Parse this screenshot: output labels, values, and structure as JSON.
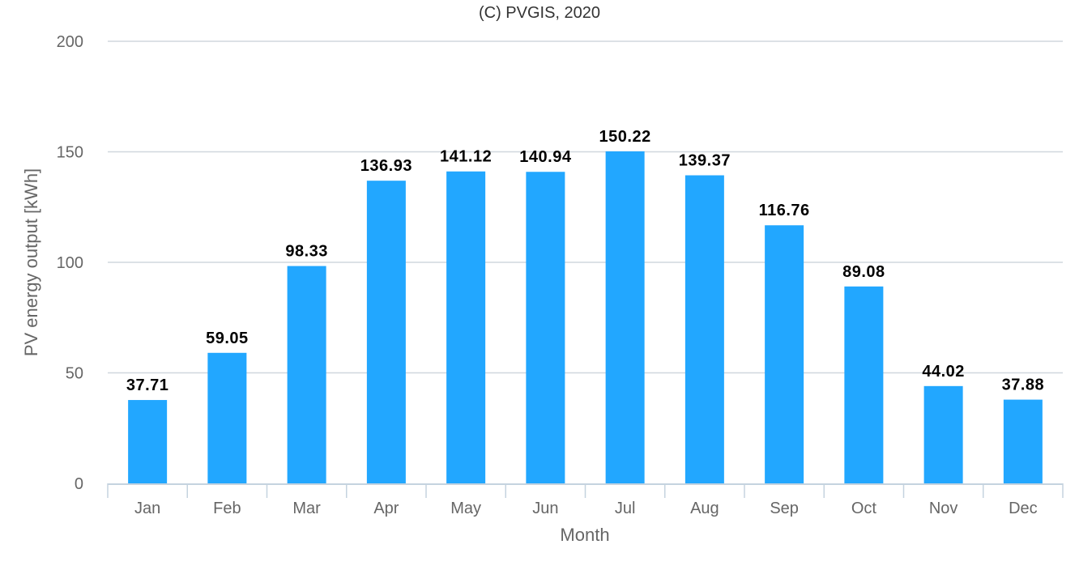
{
  "credit": "(C) PVGIS, 2020",
  "chart_data": {
    "type": "bar",
    "title": "",
    "xlabel": "Month",
    "ylabel": "PV energy output [kWh]",
    "categories": [
      "Jan",
      "Feb",
      "Mar",
      "Apr",
      "May",
      "Jun",
      "Jul",
      "Aug",
      "Sep",
      "Oct",
      "Nov",
      "Dec"
    ],
    "values": [
      37.71,
      59.05,
      98.33,
      136.93,
      141.12,
      140.94,
      150.22,
      139.37,
      116.76,
      89.08,
      44.02,
      37.88
    ],
    "value_labels": [
      "37.71",
      "59.05",
      "98.33",
      "136.93",
      "141.12",
      "140.94",
      "150.22",
      "139.37",
      "116.76",
      "89.08",
      "44.02",
      "37.88"
    ],
    "ylim": [
      0,
      200
    ],
    "yticks": [
      "0",
      "50",
      "100",
      "150",
      "200"
    ],
    "grid": true,
    "legend": "none",
    "bar_color": "#22a7ff",
    "grid_color": "#d0d7de"
  }
}
